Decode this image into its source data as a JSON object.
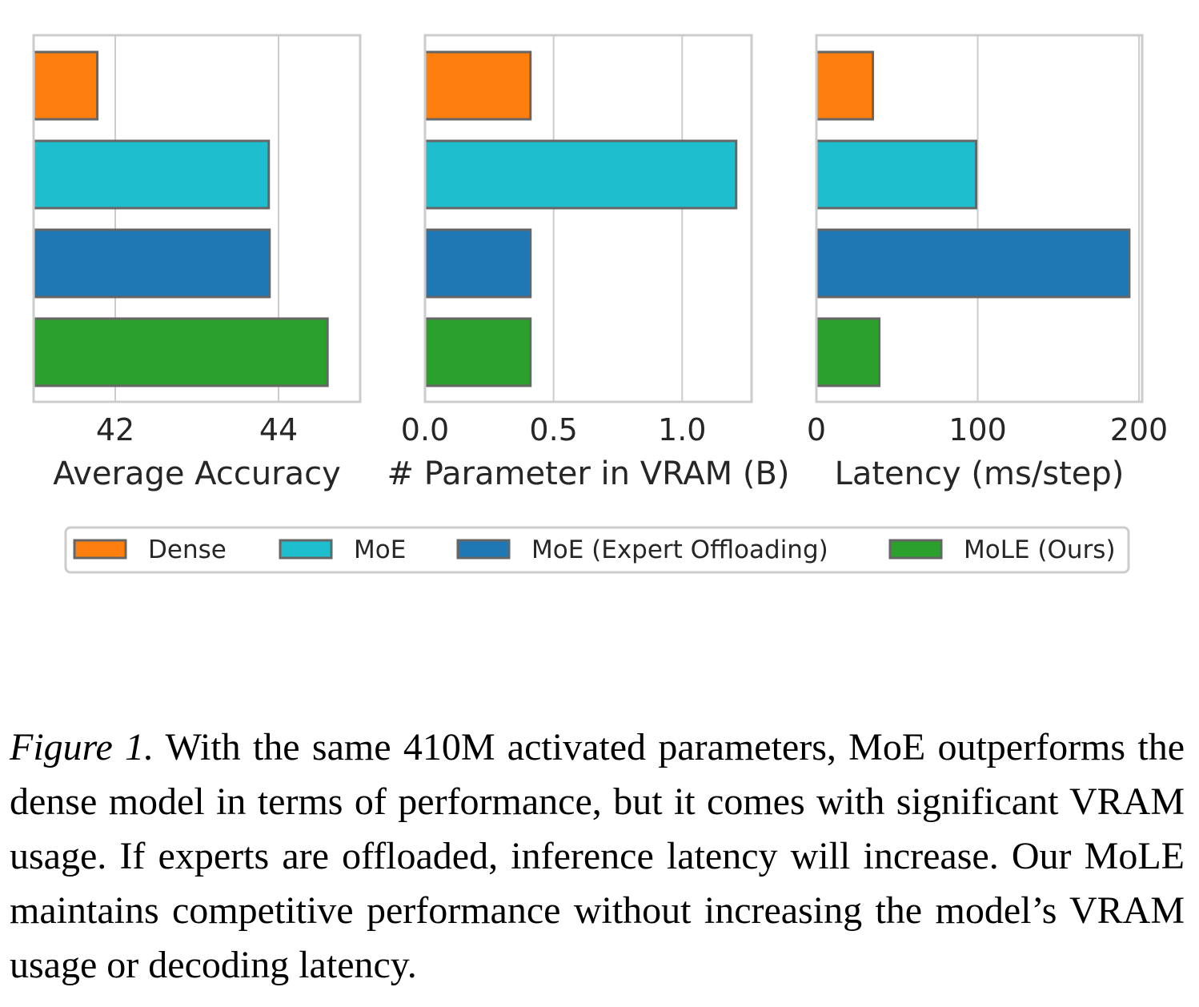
{
  "chart_data": [
    {
      "type": "bar",
      "orientation": "horizontal",
      "categories": [
        "Dense",
        "MoE",
        "MoE (Expert Offloading)",
        "MoLE (Ours)"
      ],
      "values": [
        41.78,
        43.88,
        43.89,
        44.6
      ],
      "xlabel": "Average Accuracy",
      "ticks": [
        42,
        44
      ],
      "tick_labels": [
        "42",
        "44"
      ],
      "xlim": [
        41.0,
        45.0
      ],
      "grid": true
    },
    {
      "type": "bar",
      "orientation": "horizontal",
      "categories": [
        "Dense",
        "MoE",
        "MoE (Expert Offloading)",
        "MoLE (Ours)"
      ],
      "values": [
        0.41,
        1.21,
        0.41,
        0.41
      ],
      "xlabel": "# Parameter in VRAM (B)",
      "ticks": [
        0.0,
        0.5,
        1.0
      ],
      "tick_labels": [
        "0.0",
        "0.5",
        "1.0"
      ],
      "xlim": [
        0.0,
        1.27
      ],
      "grid": true
    },
    {
      "type": "bar",
      "orientation": "horizontal",
      "categories": [
        "Dense",
        "MoE",
        "MoE (Expert Offloading)",
        "MoLE (Ours)"
      ],
      "values": [
        35,
        99,
        194,
        39
      ],
      "xlabel": "Latency (ms/step)",
      "ticks": [
        0,
        100,
        200
      ],
      "tick_labels": [
        "0",
        "100",
        "200"
      ],
      "xlim": [
        0,
        202
      ],
      "grid": true
    }
  ],
  "legend": {
    "placement": "bottom",
    "entries": [
      "Dense",
      "MoE",
      "MoE (Expert Offloading)",
      "MoLE (Ours)"
    ]
  },
  "colors": {
    "Dense": "#ff7f0e",
    "MoE": "#1ebecf",
    "MoE (Expert Offloading)": "#1f77b4",
    "MoLE (Ours)": "#2ca02c",
    "edge": "#666666",
    "frame": "#cccccc",
    "grid": "#cccccc"
  },
  "caption": {
    "label": "Figure 1.",
    "text": "With the same 410M activated parameters, MoE outperforms the dense model in terms of performance, but it comes with significant VRAM usage.  If experts are offloaded, inference latency will increase. Our MoLE maintains competitive performance without increasing the model’s VRAM usage or decoding latency."
  }
}
